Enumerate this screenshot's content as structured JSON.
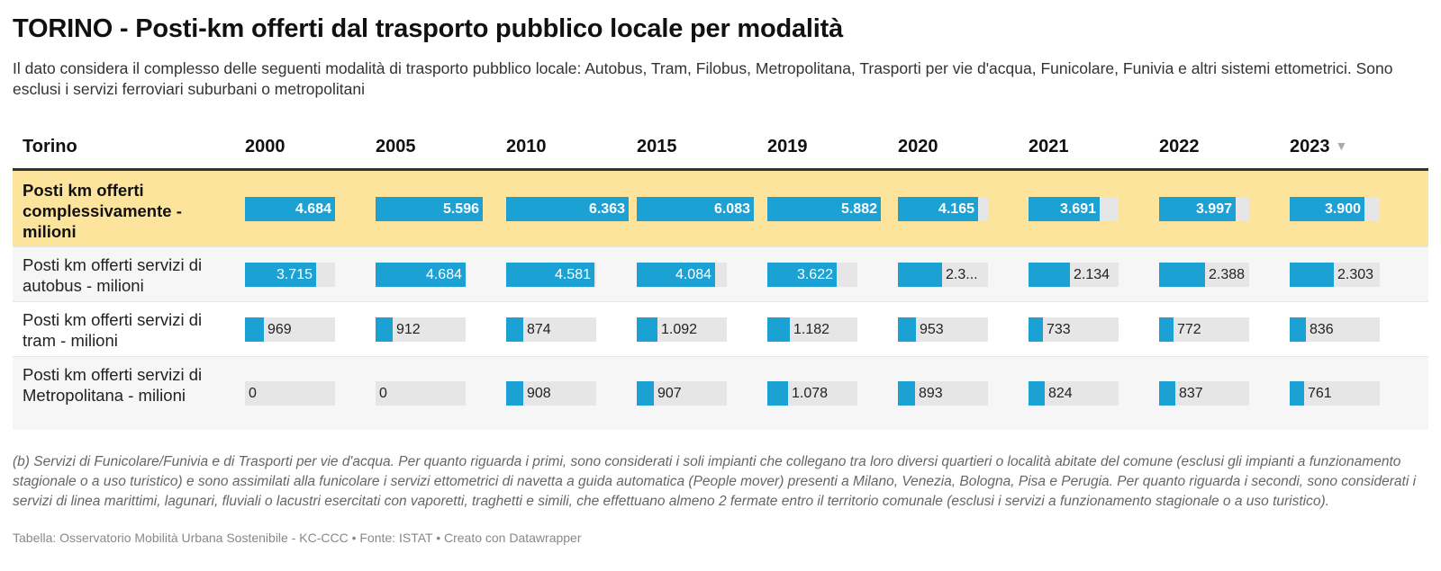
{
  "title": "TORINO - Posti-km offerti dal trasporto pubblico locale per modalità",
  "subtitle": "Il dato considera il complesso delle seguenti modalità di trasporto pubblico locale: Autobus, Tram, Filobus, Metropolitana, Trasporti per vie d'acqua, Funicolare, Funivia e altri sistemi ettometrici. Sono esclusi i servizi ferroviari suburbani o metropolitani",
  "notes": "(b) Servizi di Funicolare/Funivia e di Trasporti per vie d'acqua. Per quanto riguarda i primi, sono considerati i soli impianti che collegano tra loro diversi quartieri o località abitate del comune (esclusi gli impianti a funzionamento stagionale o a uso turistico) e sono assimilati alla funicolare i servizi ettometrici di navetta a guida automatica (People mover) presenti a Milano, Venezia, Bologna, Pisa e Perugia. Per quanto riguarda i secondi, sono considerati i servizi di linea marittimi, lagunari, fluviali o lacustri esercitati con vaporetti, traghetti e simili, che effettuano almeno 2 fermate entro il territorio comunale (esclusi i servizi a funzionamento stagionale o a uso turistico).",
  "footer": "Tabella: Osservatorio Mobilità Urbana Sostenibile - KC-CCC • Fonte: ISTAT • Creato con Datawrapper",
  "colors": {
    "bar": "#1ba1d4",
    "track": "#e6e6e6",
    "highlight_row": "#fde49c"
  },
  "chart_data": {
    "type": "table",
    "corner_header": "Torino",
    "sort_icon": "triangle-down-icon",
    "sort_glyph": "▼",
    "columns": [
      "2000",
      "2005",
      "2010",
      "2015",
      "2019",
      "2020",
      "2021",
      "2022",
      "2023"
    ],
    "rows": [
      {
        "label": "Posti km offerti complessivamente - milioni",
        "values": [
          4684,
          5596,
          6363,
          6083,
          5882,
          4165,
          3691,
          3997,
          3900
        ],
        "display": [
          "4.684",
          "5.596",
          "6.363",
          "6.083",
          "5.882",
          "4.165",
          "3.691",
          "3.997",
          "3.900"
        ],
        "max": 4684
      },
      {
        "label": "Posti km offerti servizi di autobus - milioni",
        "values": [
          3715,
          4684,
          4581,
          4084,
          3622,
          2303,
          2134,
          2388,
          2303
        ],
        "display": [
          "3.715",
          "4.684",
          "4.581",
          "4.084",
          "3.622",
          "2.3...",
          "2.134",
          "2.388",
          "2.303"
        ],
        "max": 4684
      },
      {
        "label": "Posti km offerti servizi di tram - milioni",
        "values": [
          969,
          912,
          874,
          1092,
          1182,
          953,
          733,
          772,
          836
        ],
        "display": [
          "969",
          "912",
          "874",
          "1.092",
          "1.182",
          "953",
          "733",
          "772",
          "836"
        ],
        "max": 4684
      },
      {
        "label": "Posti km offerti servizi di Metropolitana - milioni",
        "values": [
          0,
          0,
          908,
          907,
          1078,
          893,
          824,
          837,
          761
        ],
        "display": [
          "0",
          "0",
          "908",
          "907",
          "1.078",
          "893",
          "824",
          "837",
          "761"
        ],
        "max": 4684
      }
    ]
  }
}
